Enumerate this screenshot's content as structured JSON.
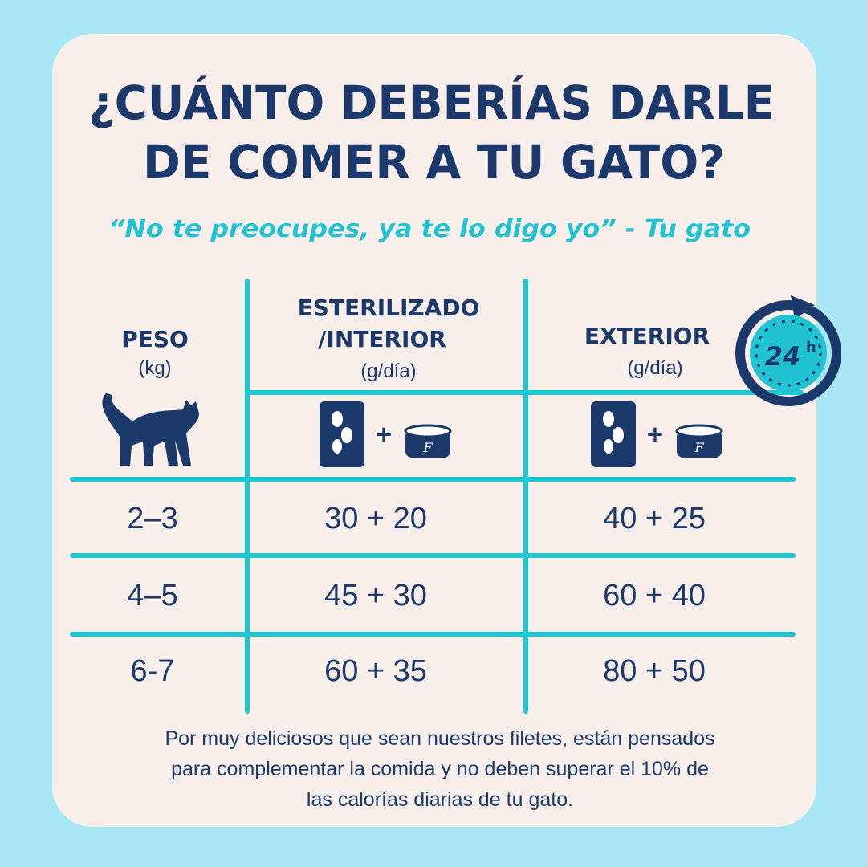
{
  "title": {
    "line1": "¿CUÁNTO DEBERÍAS DARLE",
    "line2": "DE COMER A TU GATO?"
  },
  "subtitle": "“No te preocupes, ya te lo digo yo” - Tu gato",
  "clock": {
    "number": "24",
    "unit": "h"
  },
  "table": {
    "headers": [
      {
        "lines": [
          "PESO"
        ],
        "unit": "(kg)"
      },
      {
        "lines": [
          "ESTERILIZADO",
          "/INTERIOR"
        ],
        "unit": "(g/día)"
      },
      {
        "lines": [
          "EXTERIOR"
        ],
        "unit": "(g/día)"
      }
    ],
    "plus": "+",
    "can_label": "F",
    "rows": [
      [
        "2–3",
        "30 + 20",
        "40 + 25"
      ],
      [
        "4–5",
        "45 + 30",
        "60 + 40"
      ],
      [
        "6-7",
        "60 + 35",
        "80 + 50"
      ]
    ]
  },
  "footer": [
    "Por muy deliciosos que sean nuestros filetes, están pensados",
    "para complementar la comida y no deben superar el 10% de",
    "las calorías diarias de tu gato."
  ]
}
